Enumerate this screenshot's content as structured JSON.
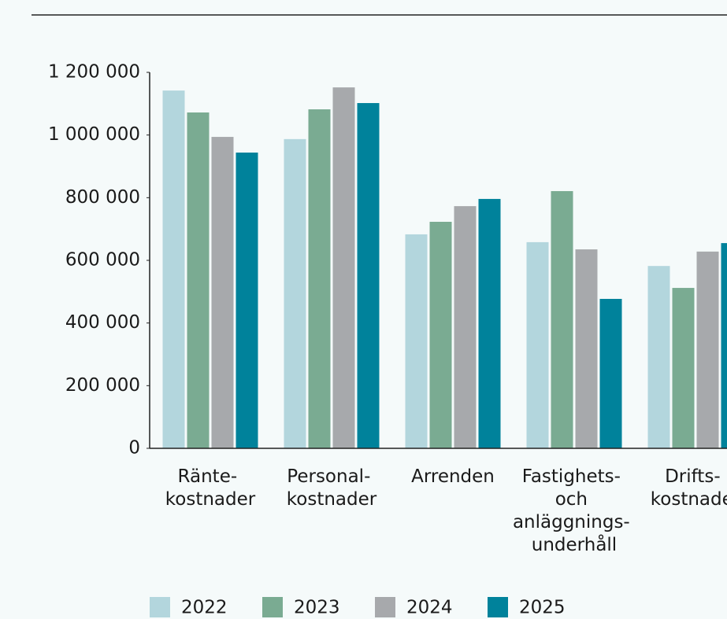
{
  "chart_data": {
    "type": "bar",
    "categories": [
      "Ränte- kostnader",
      "Personal- kostnader",
      "Arrenden",
      "Fastighets- och anläggnings- underhåll",
      "Drifts- kostnader"
    ],
    "series": [
      {
        "name": "2022",
        "color": "#b3d6dd",
        "values": [
          1142000,
          987000,
          683000,
          658000,
          582000
        ]
      },
      {
        "name": "2023",
        "color": "#7aab92",
        "values": [
          1072000,
          1082000,
          723000,
          821000,
          512000
        ]
      },
      {
        "name": "2024",
        "color": "#a7a9ac",
        "values": [
          994000,
          1152000,
          773000,
          635000,
          628000
        ]
      },
      {
        "name": "2025",
        "color": "#00829b",
        "values": [
          944000,
          1102000,
          796000,
          477000,
          655000
        ]
      }
    ],
    "ylim": [
      0,
      1200000
    ],
    "yticks": [
      0,
      {
        "value": 200000,
        "label": "200 000"
      },
      {
        "value": 400000,
        "label": "400 000"
      },
      {
        "value": 600000,
        "label": "600 000"
      },
      {
        "value": 800000,
        "label": "800 000"
      },
      {
        "value": 1000000,
        "label": "1 000 000"
      },
      {
        "value": 1200000,
        "label": "1 200 000"
      }
    ],
    "grid": false
  }
}
